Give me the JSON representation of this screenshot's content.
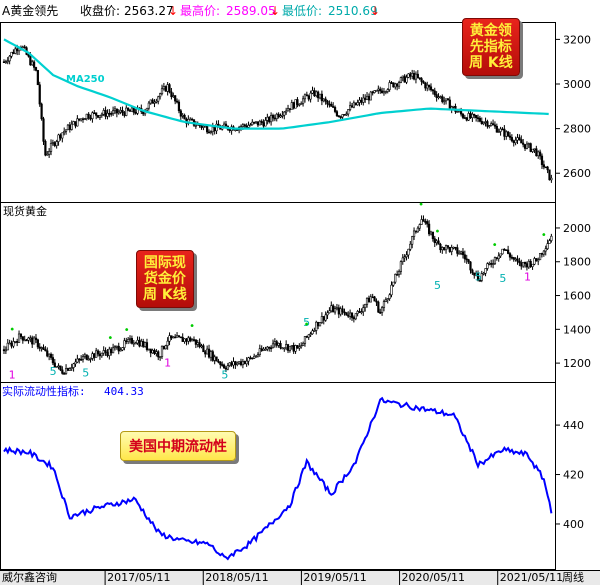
{
  "header": {
    "title": "A黄金领先",
    "close_label": "收盘价:",
    "close_value": "2563.27",
    "high_label": "最高价:",
    "high_value": "2589.05",
    "low_label": "最低价:",
    "low_value": "2510.69",
    "down_arrow": "↓"
  },
  "badges": {
    "top": [
      "黄金领",
      "先指标",
      "周 K线"
    ],
    "middle": [
      "国际现",
      "货金价",
      "周 K线"
    ],
    "bottom": "美国中期流动性"
  },
  "panel_labels": {
    "ma": "MA250",
    "middle": "现货黄金",
    "bottom_label": "实际流动性指标:",
    "bottom_value": "404.33"
  },
  "footer": {
    "left": "威尔鑫咨询",
    "right": "周线",
    "dates": [
      "2017/05/11",
      "2018/05/11",
      "2019/05/11",
      "2020/05/11",
      "2021/05/11"
    ]
  },
  "colors": {
    "candle": "#000000",
    "ma": "#00d0d0",
    "liquidity": "#0000ff",
    "marker_green": "#00cc00",
    "marker_cyan": "#00b0b0",
    "marker_magenta": "#e000e0",
    "value_red": "#ff0000"
  },
  "chart_data": [
    {
      "type": "candlestick",
      "title": "黄金领先指标 周K线",
      "x_range": [
        "2016-05",
        "2021-12"
      ],
      "ylim": [
        2480,
        3260
      ],
      "y_ticks": [
        2600,
        2800,
        3000,
        3200
      ],
      "series": [
        {
          "name": "MA250",
          "x": [
            "2016-05",
            "2016-08",
            "2016-11",
            "2017-02",
            "2017-06",
            "2017-10",
            "2018-03",
            "2018-09",
            "2019-03",
            "2019-09",
            "2020-03",
            "2020-09",
            "2021-03",
            "2021-09",
            "2021-12"
          ],
          "values": [
            3200,
            3140,
            3040,
            2990,
            2940,
            2880,
            2830,
            2800,
            2800,
            2830,
            2870,
            2890,
            2880,
            2870,
            2865
          ]
        },
        {
          "name": "收盘价",
          "x": [
            "2016-05",
            "2016-07",
            "2016-09",
            "2016-10",
            "2016-12",
            "2017-03",
            "2017-06",
            "2017-10",
            "2018-01",
            "2018-03",
            "2018-06",
            "2018-10",
            "2019-01",
            "2019-04",
            "2019-07",
            "2019-10",
            "2020-01",
            "2020-04",
            "2020-07",
            "2020-10",
            "2021-01",
            "2021-04",
            "2021-07",
            "2021-10",
            "2021-12"
          ],
          "values": [
            3100,
            3180,
            3050,
            2680,
            2780,
            2860,
            2870,
            2880,
            2990,
            2840,
            2800,
            2810,
            2830,
            2900,
            2960,
            2860,
            2930,
            2990,
            3040,
            2950,
            2860,
            2830,
            2760,
            2700,
            2563.27
          ]
        }
      ]
    },
    {
      "type": "candlestick",
      "title": "国际现货金价 周K线",
      "x_range": [
        "2016-05",
        "2021-12"
      ],
      "ylim": [
        1100,
        2130
      ],
      "y_ticks": [
        1200,
        1400,
        1600,
        1800,
        2000
      ],
      "series": [
        {
          "name": "现货黄金",
          "x": [
            "2016-05",
            "2016-07",
            "2016-09",
            "2016-12",
            "2017-03",
            "2017-06",
            "2017-09",
            "2017-12",
            "2018-01",
            "2018-04",
            "2018-08",
            "2018-11",
            "2019-02",
            "2019-05",
            "2019-07",
            "2019-09",
            "2019-12",
            "2020-02",
            "2020-03",
            "2020-05",
            "2020-08",
            "2020-10",
            "2021-01",
            "2021-03",
            "2021-06",
            "2021-08",
            "2021-10",
            "2021-12"
          ],
          "values": [
            1280,
            1360,
            1320,
            1150,
            1240,
            1270,
            1340,
            1250,
            1340,
            1340,
            1180,
            1220,
            1320,
            1280,
            1420,
            1520,
            1480,
            1600,
            1500,
            1720,
            2060,
            1900,
            1850,
            1700,
            1880,
            1780,
            1800,
            1960
          ]
        }
      ]
    },
    {
      "type": "line",
      "title": "美国中期流动性",
      "x_range": [
        "2016-05",
        "2021-12"
      ],
      "ylim": [
        383,
        455
      ],
      "y_ticks": [
        400,
        420,
        440
      ],
      "series": [
        {
          "name": "实际流动性指标",
          "x": [
            "2016-05",
            "2016-08",
            "2016-11",
            "2017-01",
            "2017-05",
            "2017-09",
            "2017-12",
            "2018-03",
            "2018-06",
            "2018-08",
            "2018-11",
            "2019-01",
            "2019-04",
            "2019-06",
            "2019-09",
            "2019-12",
            "2020-03",
            "2020-06",
            "2020-09",
            "2020-12",
            "2021-03",
            "2021-06",
            "2021-09",
            "2021-11",
            "2021-12"
          ],
          "values": [
            430,
            429,
            423,
            403,
            407,
            410,
            396,
            393,
            392,
            386,
            392,
            398,
            408,
            425,
            412,
            425,
            450,
            448,
            446,
            444,
            424,
            430,
            428,
            418,
            404.33
          ]
        }
      ]
    }
  ]
}
